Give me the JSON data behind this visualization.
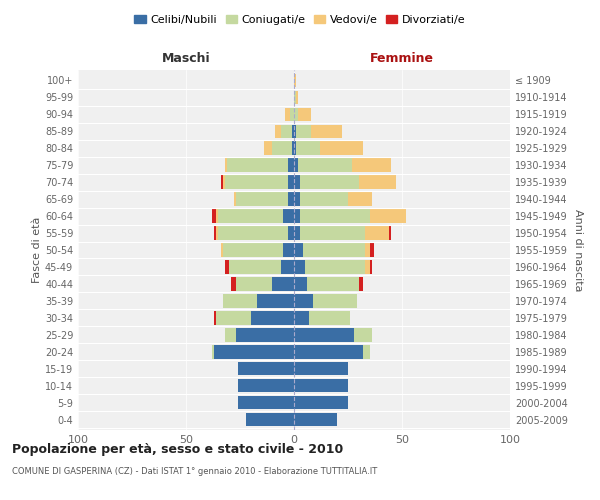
{
  "age_groups": [
    "0-4",
    "5-9",
    "10-14",
    "15-19",
    "20-24",
    "25-29",
    "30-34",
    "35-39",
    "40-44",
    "45-49",
    "50-54",
    "55-59",
    "60-64",
    "65-69",
    "70-74",
    "75-79",
    "80-84",
    "85-89",
    "90-94",
    "95-99",
    "100+"
  ],
  "birth_years": [
    "2005-2009",
    "2000-2004",
    "1995-1999",
    "1990-1994",
    "1985-1989",
    "1980-1984",
    "1975-1979",
    "1970-1974",
    "1965-1969",
    "1960-1964",
    "1955-1959",
    "1950-1954",
    "1945-1949",
    "1940-1944",
    "1935-1939",
    "1930-1934",
    "1925-1929",
    "1920-1924",
    "1915-1919",
    "1910-1914",
    "≤ 1909"
  ],
  "colors": {
    "celibi": "#3a6ea5",
    "coniugati": "#c5d9a0",
    "vedovi": "#f5c87a",
    "divorziati": "#d42020"
  },
  "maschi": {
    "celibi": [
      22,
      26,
      26,
      26,
      37,
      27,
      20,
      17,
      10,
      6,
      5,
      3,
      5,
      3,
      3,
      3,
      1,
      1,
      0,
      0,
      0
    ],
    "coniugati": [
      0,
      0,
      0,
      0,
      1,
      5,
      16,
      16,
      17,
      24,
      28,
      32,
      30,
      24,
      29,
      28,
      9,
      5,
      2,
      0,
      0
    ],
    "vedovi": [
      0,
      0,
      0,
      0,
      0,
      0,
      0,
      0,
      0,
      0,
      1,
      1,
      1,
      1,
      1,
      1,
      4,
      3,
      2,
      0,
      0
    ],
    "divorziati": [
      0,
      0,
      0,
      0,
      0,
      0,
      1,
      0,
      2,
      2,
      0,
      1,
      2,
      0,
      1,
      0,
      0,
      0,
      0,
      0,
      0
    ]
  },
  "femmine": {
    "celibi": [
      20,
      25,
      25,
      25,
      32,
      28,
      7,
      9,
      6,
      5,
      4,
      3,
      3,
      3,
      3,
      2,
      1,
      1,
      0,
      0,
      0
    ],
    "coniugati": [
      0,
      0,
      0,
      0,
      3,
      8,
      19,
      20,
      24,
      28,
      29,
      30,
      32,
      22,
      27,
      25,
      11,
      7,
      2,
      1,
      0
    ],
    "vedovi": [
      0,
      0,
      0,
      0,
      0,
      0,
      0,
      0,
      0,
      2,
      2,
      11,
      17,
      11,
      17,
      18,
      20,
      14,
      6,
      1,
      1
    ],
    "divorziati": [
      0,
      0,
      0,
      0,
      0,
      0,
      0,
      0,
      2,
      1,
      2,
      1,
      0,
      0,
      0,
      0,
      0,
      0,
      0,
      0,
      0
    ]
  },
  "title": "Popolazione per età, sesso e stato civile - 2010",
  "subtitle": "COMUNE DI GASPERINA (CZ) - Dati ISTAT 1° gennaio 2010 - Elaborazione TUTTITALIA.IT",
  "xlabel_maschi": "Maschi",
  "xlabel_femmine": "Femmine",
  "ylabel_left": "Fasce di età",
  "ylabel_right": "Anni di nascita",
  "xlim": 100,
  "bg_color": "#ffffff",
  "plot_bg_color": "#f0f0f0",
  "grid_color": "#ffffff",
  "legend_labels": [
    "Celibi/Nubili",
    "Coniugati/e",
    "Vedovi/e",
    "Divorziati/e"
  ]
}
